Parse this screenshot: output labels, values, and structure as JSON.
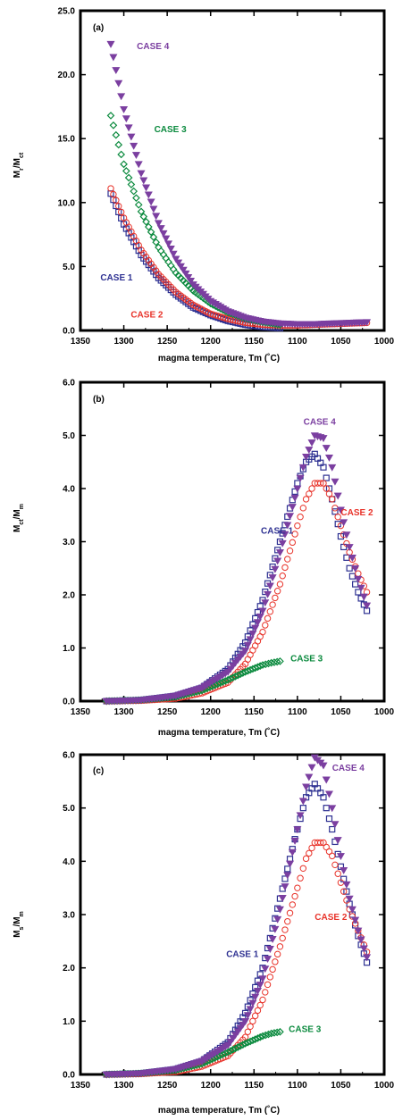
{
  "chart_data": [
    {
      "type": "scatter",
      "panel_label": "(a)",
      "xlabel": "magma temperature, Tm (˚C)",
      "ylabel": {
        "base": "M",
        "sub1": "r",
        "mid": "/M",
        "sub2": "ct"
      },
      "xlim": [
        1350,
        1000
      ],
      "ylim": [
        0,
        25
      ],
      "xticks": [
        "1350",
        "1300",
        "1250",
        "1200",
        "1150",
        "1100",
        "1050",
        "1000"
      ],
      "yticks": [
        "0.0",
        "5.0",
        "10.0",
        "15.0",
        "20.0",
        "25.0"
      ],
      "series": [
        {
          "name": "CASE 1",
          "color": "#2e3192",
          "marker": "square",
          "x": [
            1315,
            1300,
            1280,
            1260,
            1240,
            1220,
            1200,
            1180,
            1160,
            1140,
            1120
          ],
          "y": [
            10.7,
            8.3,
            5.9,
            4.1,
            2.8,
            1.8,
            1.2,
            0.75,
            0.45,
            0.28,
            0.18
          ]
        },
        {
          "name": "CASE 2",
          "color": "#e8332a",
          "marker": "circle",
          "x": [
            1315,
            1300,
            1280,
            1260,
            1240,
            1220,
            1200,
            1180,
            1160,
            1140,
            1120,
            1100,
            1080,
            1060,
            1040,
            1020
          ],
          "y": [
            11.1,
            8.8,
            6.3,
            4.4,
            3.0,
            2.0,
            1.3,
            0.9,
            0.6,
            0.45,
            0.4,
            0.4,
            0.45,
            0.5,
            0.55,
            0.6
          ]
        },
        {
          "name": "CASE 3",
          "color": "#0b8a3e",
          "marker": "diamond",
          "x": [
            1315,
            1300,
            1280,
            1260,
            1240,
            1220,
            1200,
            1180,
            1160,
            1140,
            1120
          ],
          "y": [
            16.8,
            13.0,
            9.3,
            6.5,
            4.5,
            3.1,
            2.1,
            1.4,
            0.95,
            0.65,
            0.45
          ]
        },
        {
          "name": "CASE 4",
          "color": "#7b3fa0",
          "marker": "triangle-down",
          "x": [
            1315,
            1300,
            1280,
            1260,
            1240,
            1220,
            1200,
            1180,
            1160,
            1140,
            1120,
            1100,
            1080,
            1060,
            1040,
            1020
          ],
          "y": [
            22.4,
            17.3,
            12.3,
            8.4,
            5.6,
            3.6,
            2.3,
            1.5,
            1.0,
            0.7,
            0.55,
            0.5,
            0.5,
            0.55,
            0.6,
            0.65
          ]
        }
      ],
      "annotations": [
        {
          "text": "CASE 4",
          "x": 1285,
          "y": 22.0,
          "color": "#7b3fa0"
        },
        {
          "text": "CASE 3",
          "x": 1265,
          "y": 15.5,
          "color": "#0b8a3e"
        },
        {
          "text": "CASE 1",
          "x": 1327,
          "y": 3.9,
          "color": "#2e3192"
        },
        {
          "text": "CASE 2",
          "x": 1292,
          "y": 1.0,
          "color": "#e8332a"
        }
      ]
    },
    {
      "type": "scatter",
      "panel_label": "(b)",
      "xlabel": "magma temperature, Tm (˚C)",
      "ylabel": {
        "base": "M",
        "sub1": "ct",
        "mid": "/M",
        "sub2": "m"
      },
      "xlim": [
        1350,
        1000
      ],
      "ylim": [
        0,
        6
      ],
      "xticks": [
        "1350",
        "1300",
        "1250",
        "1200",
        "1150",
        "1100",
        "1050",
        "1000"
      ],
      "yticks": [
        "0.0",
        "1.0",
        "2.0",
        "3.0",
        "4.0",
        "5.0",
        "6.0"
      ],
      "series": [
        {
          "name": "CASE 1",
          "color": "#2e3192",
          "marker": "square",
          "x": [
            1320,
            1280,
            1240,
            1210,
            1180,
            1160,
            1140,
            1120,
            1100,
            1090,
            1080,
            1070,
            1060,
            1050,
            1040,
            1030,
            1020
          ],
          "y": [
            0.0,
            0.02,
            0.1,
            0.25,
            0.6,
            1.1,
            1.9,
            3.0,
            4.1,
            4.5,
            4.65,
            4.4,
            3.8,
            3.1,
            2.5,
            2.05,
            1.7
          ]
        },
        {
          "name": "CASE 2",
          "color": "#e8332a",
          "marker": "circle",
          "x": [
            1320,
            1280,
            1240,
            1210,
            1180,
            1160,
            1140,
            1120,
            1100,
            1090,
            1080,
            1070,
            1060,
            1050,
            1040,
            1030,
            1020
          ],
          "y": [
            0.0,
            0.01,
            0.05,
            0.15,
            0.35,
            0.7,
            1.3,
            2.2,
            3.3,
            3.8,
            4.1,
            4.1,
            3.8,
            3.3,
            2.8,
            2.4,
            2.05
          ]
        },
        {
          "name": "CASE 3",
          "color": "#0b8a3e",
          "marker": "diamond",
          "x": [
            1320,
            1280,
            1240,
            1210,
            1180,
            1160,
            1140,
            1130,
            1120
          ],
          "y": [
            0.0,
            0.02,
            0.08,
            0.2,
            0.4,
            0.55,
            0.68,
            0.72,
            0.75
          ]
        },
        {
          "name": "CASE 4",
          "color": "#7b3fa0",
          "marker": "triangle-down",
          "x": [
            1320,
            1280,
            1240,
            1210,
            1180,
            1160,
            1140,
            1120,
            1100,
            1090,
            1080,
            1070,
            1060,
            1050,
            1040,
            1030,
            1020
          ],
          "y": [
            0.0,
            0.02,
            0.1,
            0.25,
            0.55,
            0.95,
            1.7,
            2.8,
            4.0,
            4.6,
            5.0,
            4.95,
            4.4,
            3.6,
            2.9,
            2.3,
            1.8
          ]
        }
      ],
      "annotations": [
        {
          "text": "CASE 4",
          "x": 1093,
          "y": 5.2,
          "color": "#7b3fa0"
        },
        {
          "text": "CASE 2",
          "x": 1050,
          "y": 3.5,
          "color": "#e8332a"
        },
        {
          "text": "CASE 1",
          "x": 1142,
          "y": 3.15,
          "color": "#2e3192"
        },
        {
          "text": "CASE 3",
          "x": 1108,
          "y": 0.75,
          "color": "#0b8a3e"
        }
      ]
    },
    {
      "type": "scatter",
      "panel_label": "(c)",
      "xlabel": "magma temperature, Tm (˚C)",
      "ylabel": {
        "base": "M",
        "sub1": "s",
        "mid": "/M",
        "sub2": "m"
      },
      "xlim": [
        1350,
        1000
      ],
      "ylim": [
        0,
        6
      ],
      "xticks": [
        "1350",
        "1300",
        "1250",
        "1200",
        "1150",
        "1100",
        "1050",
        "1000"
      ],
      "yticks": [
        "0.0",
        "1.0",
        "2.0",
        "3.0",
        "4.0",
        "5.0",
        "6.0"
      ],
      "series": [
        {
          "name": "CASE 1",
          "color": "#2e3192",
          "marker": "square",
          "x": [
            1320,
            1280,
            1240,
            1210,
            1180,
            1160,
            1140,
            1120,
            1100,
            1090,
            1080,
            1070,
            1060,
            1050,
            1040,
            1030,
            1020
          ],
          "y": [
            0.0,
            0.02,
            0.1,
            0.25,
            0.6,
            1.15,
            2.0,
            3.3,
            4.6,
            5.2,
            5.45,
            5.2,
            4.6,
            3.9,
            3.2,
            2.6,
            2.1
          ]
        },
        {
          "name": "CASE 2",
          "color": "#e8332a",
          "marker": "circle",
          "x": [
            1320,
            1280,
            1240,
            1210,
            1180,
            1160,
            1140,
            1120,
            1100,
            1090,
            1080,
            1070,
            1060,
            1050,
            1040,
            1030,
            1020
          ],
          "y": [
            0.0,
            0.01,
            0.05,
            0.15,
            0.35,
            0.7,
            1.4,
            2.4,
            3.5,
            4.05,
            4.35,
            4.35,
            4.1,
            3.6,
            3.1,
            2.7,
            2.3
          ]
        },
        {
          "name": "CASE 3",
          "color": "#0b8a3e",
          "marker": "diamond",
          "x": [
            1320,
            1280,
            1240,
            1210,
            1180,
            1160,
            1140,
            1130,
            1120
          ],
          "y": [
            0.0,
            0.02,
            0.08,
            0.2,
            0.42,
            0.58,
            0.72,
            0.77,
            0.8
          ]
        },
        {
          "name": "CASE 4",
          "color": "#7b3fa0",
          "marker": "triangle-down",
          "x": [
            1320,
            1280,
            1240,
            1210,
            1180,
            1160,
            1140,
            1120,
            1100,
            1090,
            1080,
            1070,
            1060,
            1050,
            1040,
            1030,
            1020
          ],
          "y": [
            0.0,
            0.02,
            0.1,
            0.25,
            0.55,
            1.0,
            1.8,
            3.1,
            4.6,
            5.4,
            5.95,
            5.8,
            5.0,
            4.1,
            3.3,
            2.7,
            2.2
          ]
        }
      ],
      "annotations": [
        {
          "text": "CASE 4",
          "x": 1060,
          "y": 5.7,
          "color": "#7b3fa0"
        },
        {
          "text": "CASE 2",
          "x": 1080,
          "y": 2.9,
          "color": "#e8332a"
        },
        {
          "text": "CASE 1",
          "x": 1182,
          "y": 2.2,
          "color": "#2e3192"
        },
        {
          "text": "CASE 3",
          "x": 1110,
          "y": 0.8,
          "color": "#0b8a3e"
        }
      ]
    }
  ]
}
